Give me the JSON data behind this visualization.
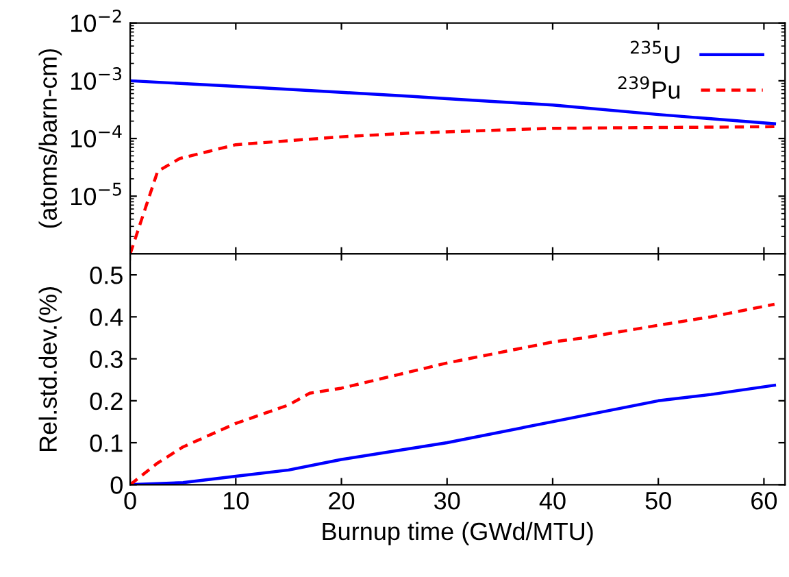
{
  "chart_data": [
    {
      "type": "line",
      "ylabel": "(atoms/barn-cm)",
      "log": "y",
      "legend": "top right",
      "tick_labels": "y",
      "xlim": [
        0,
        62
      ],
      "xticks": [
        0,
        10,
        20,
        30,
        40,
        50,
        60
      ],
      "ylim": [
        1e-06,
        0.01
      ],
      "yticks": [
        {
          "value": 1e-06,
          "label": null
        },
        {
          "value": 1e-05,
          "label": "10$^{−5}$"
        },
        {
          "value": 0.0001,
          "label": "10$^{−4}$"
        },
        {
          "value": 0.001,
          "label": "10$^{−3}$"
        },
        {
          "value": 0.01,
          "label": "10$^{−2}$"
        }
      ],
      "series": [
        {
          "name": "$^{235}$U",
          "color": "#0000ff",
          "line_style": "solid",
          "x": [
            0,
            10,
            20,
            26.5,
            30,
            40,
            50,
            61
          ],
          "values": [
            0.001,
            0.0008,
            0.00063,
            0.00054,
            0.00049,
            0.00038,
            0.00026,
            0.00018
          ]
        },
        {
          "name": "$^{239}$Pu",
          "color": "#ff0000",
          "line_style": "dashed",
          "x": [
            0,
            2.6,
            4.7,
            10,
            20,
            26.5,
            40,
            50,
            61
          ],
          "values": [
            1e-06,
            2.7e-05,
            4.5e-05,
            7.8e-05,
            0.000107,
            0.000124,
            0.00015,
            0.000155,
            0.00016
          ]
        }
      ]
    },
    {
      "type": "line",
      "ylabel": "Rel.std.dev.(%)",
      "xlabel": "Burnup time (GWd/MTU)",
      "xlim": [
        0,
        62
      ],
      "xticks": [
        0,
        10,
        20,
        30,
        40,
        50,
        60
      ],
      "ylim": [
        0,
        0.55
      ],
      "yticks": [
        0,
        0.1,
        0.2,
        0.3,
        0.4,
        0.5
      ],
      "series": [
        {
          "color": "#0000ff",
          "line_style": "solid",
          "x": [
            0,
            5,
            10,
            15,
            20,
            30,
            40,
            50,
            55,
            61
          ],
          "values": [
            0,
            0.005,
            0.02,
            0.035,
            0.06,
            0.1,
            0.15,
            0.2,
            0.215,
            0.237
          ]
        },
        {
          "color": "#ff0000",
          "line_style": "dashed",
          "x": [
            0,
            2.5,
            5,
            10,
            15,
            17,
            20,
            25,
            30,
            40,
            43,
            50,
            55,
            61
          ],
          "values": [
            0,
            0.05,
            0.09,
            0.146,
            0.19,
            0.218,
            0.23,
            0.26,
            0.29,
            0.34,
            0.35,
            0.38,
            0.4,
            0.43
          ]
        }
      ]
    }
  ]
}
